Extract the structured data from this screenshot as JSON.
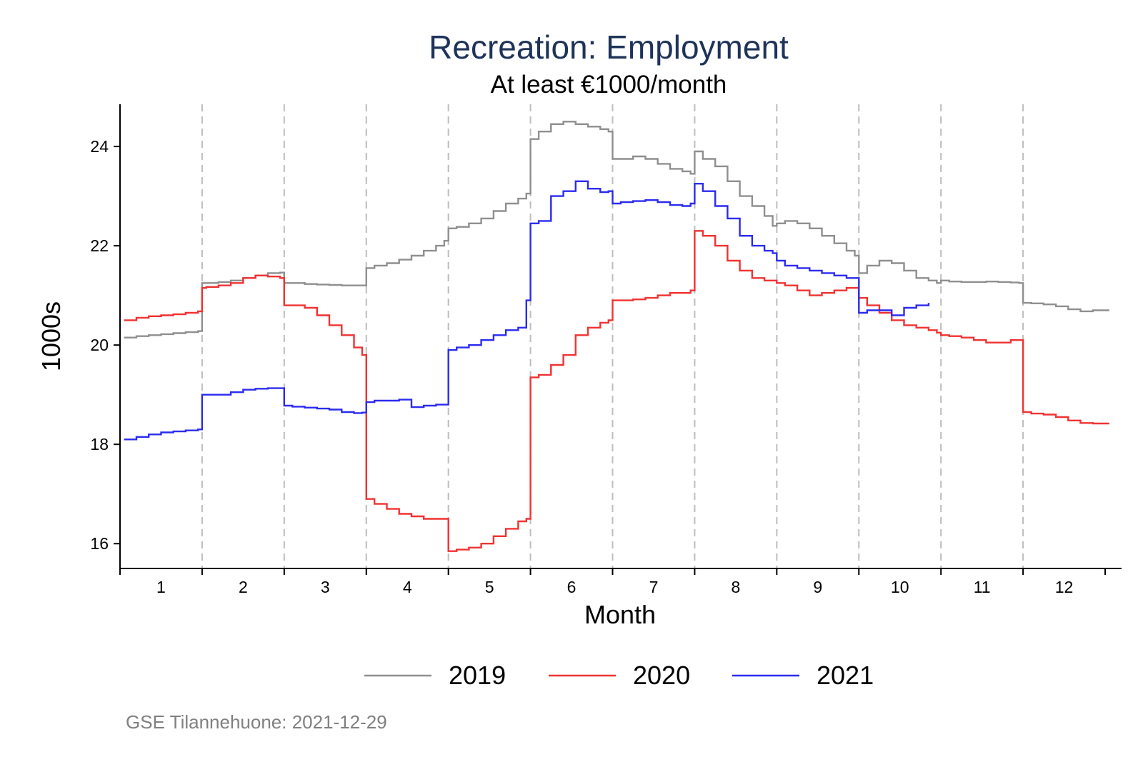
{
  "chart_data": {
    "type": "line",
    "title": "Recreation: Employment",
    "subtitle": "At least €1000/month",
    "xlabel": "Month",
    "ylabel": "1000s",
    "xlim": [
      0.5,
      12.7
    ],
    "ylim": [
      15.5,
      24.85
    ],
    "x_ticks": [
      "1",
      "2",
      "3",
      "4",
      "5",
      "6",
      "7",
      "8",
      "9",
      "10",
      "11",
      "12"
    ],
    "y_ticks": [
      16,
      18,
      20,
      22,
      24
    ],
    "month_boundaries": [
      0.5,
      1.5,
      2.5,
      3.5,
      4.5,
      5.5,
      6.5,
      7.5,
      8.5,
      9.5,
      10.5,
      11.5
    ],
    "grid": "vertical dashed month boundaries",
    "legend": "bottom",
    "colors": {
      "2019": "#8f8f8f",
      "2020": "#f03232",
      "2021": "#2b2bf0",
      "title": "#1f3359",
      "text": "#000000",
      "grid": "#bdbdbd",
      "note": "#808080"
    },
    "series": [
      {
        "name": "2019",
        "color": "#8f8f8f",
        "x": [
          0.55,
          0.7,
          0.85,
          1.0,
          1.15,
          1.3,
          1.45,
          1.5,
          1.55,
          1.7,
          1.85,
          2.0,
          2.15,
          2.3,
          2.45,
          2.5,
          2.6,
          2.75,
          2.9,
          3.05,
          3.2,
          3.35,
          3.45,
          3.5,
          3.6,
          3.75,
          3.9,
          4.05,
          4.2,
          4.35,
          4.45,
          4.5,
          4.6,
          4.75,
          4.9,
          5.05,
          5.2,
          5.35,
          5.45,
          5.5,
          5.6,
          5.75,
          5.9,
          6.05,
          6.2,
          6.35,
          6.45,
          6.5,
          6.6,
          6.75,
          6.9,
          7.05,
          7.2,
          7.35,
          7.45,
          7.5,
          7.6,
          7.75,
          7.9,
          8.05,
          8.2,
          8.35,
          8.45,
          8.5,
          8.6,
          8.75,
          8.9,
          9.05,
          9.2,
          9.35,
          9.45,
          9.5,
          9.6,
          9.75,
          9.9,
          10.05,
          10.2,
          10.35,
          10.45,
          10.5,
          10.6,
          10.75,
          10.9,
          11.05,
          11.2,
          11.35,
          11.45,
          11.5,
          11.6,
          11.75,
          11.9,
          12.05,
          12.2,
          12.35,
          12.5,
          12.55
        ],
        "values": [
          20.15,
          20.18,
          20.2,
          20.22,
          20.24,
          20.26,
          20.28,
          21.25,
          21.25,
          21.27,
          21.3,
          21.35,
          21.4,
          21.45,
          21.46,
          21.25,
          21.25,
          21.23,
          21.22,
          21.21,
          21.2,
          21.2,
          21.2,
          21.55,
          21.6,
          21.65,
          21.72,
          21.8,
          21.9,
          22.0,
          22.1,
          22.35,
          22.38,
          22.45,
          22.55,
          22.7,
          22.85,
          22.95,
          23.05,
          24.15,
          24.3,
          24.45,
          24.5,
          24.45,
          24.4,
          24.35,
          24.3,
          23.75,
          23.75,
          23.8,
          23.75,
          23.65,
          23.55,
          23.5,
          23.45,
          23.9,
          23.75,
          23.6,
          23.3,
          23.0,
          22.8,
          22.6,
          22.4,
          22.45,
          22.5,
          22.45,
          22.35,
          22.2,
          22.05,
          21.9,
          21.8,
          21.45,
          21.6,
          21.7,
          21.65,
          21.5,
          21.35,
          21.3,
          21.25,
          21.3,
          21.28,
          21.27,
          21.27,
          21.28,
          21.27,
          21.26,
          21.25,
          20.85,
          20.84,
          20.82,
          20.78,
          20.72,
          20.68,
          20.7,
          20.7,
          20.7
        ]
      },
      {
        "name": "2020",
        "color": "#f03232",
        "x": [
          0.55,
          0.7,
          0.85,
          1.0,
          1.15,
          1.3,
          1.45,
          1.5,
          1.55,
          1.7,
          1.85,
          2.0,
          2.15,
          2.3,
          2.45,
          2.5,
          2.6,
          2.75,
          2.9,
          3.05,
          3.2,
          3.35,
          3.45,
          3.5,
          3.6,
          3.75,
          3.9,
          4.05,
          4.2,
          4.35,
          4.45,
          4.5,
          4.6,
          4.75,
          4.9,
          5.05,
          5.2,
          5.35,
          5.45,
          5.5,
          5.6,
          5.75,
          5.9,
          6.05,
          6.2,
          6.35,
          6.45,
          6.5,
          6.6,
          6.75,
          6.9,
          7.05,
          7.2,
          7.35,
          7.45,
          7.5,
          7.6,
          7.75,
          7.9,
          8.05,
          8.2,
          8.35,
          8.45,
          8.5,
          8.6,
          8.75,
          8.9,
          9.05,
          9.2,
          9.35,
          9.45,
          9.5,
          9.6,
          9.75,
          9.9,
          10.05,
          10.2,
          10.35,
          10.45,
          10.5,
          10.6,
          10.75,
          10.9,
          11.05,
          11.2,
          11.35,
          11.45,
          11.5,
          11.6,
          11.75,
          11.9,
          12.05,
          12.2,
          12.35,
          12.5,
          12.55
        ],
        "values": [
          20.5,
          20.55,
          20.58,
          20.6,
          20.62,
          20.65,
          20.68,
          21.15,
          21.17,
          21.2,
          21.25,
          21.35,
          21.4,
          21.38,
          21.35,
          20.8,
          20.8,
          20.75,
          20.6,
          20.4,
          20.2,
          19.95,
          19.8,
          16.9,
          16.8,
          16.7,
          16.6,
          16.55,
          16.5,
          16.5,
          16.5,
          15.85,
          15.88,
          15.92,
          16.0,
          16.15,
          16.3,
          16.45,
          16.5,
          19.35,
          19.4,
          19.6,
          19.8,
          20.2,
          20.35,
          20.45,
          20.5,
          20.9,
          20.9,
          20.92,
          20.95,
          21.0,
          21.05,
          21.05,
          21.1,
          22.3,
          22.2,
          22.0,
          21.7,
          21.5,
          21.35,
          21.3,
          21.3,
          21.25,
          21.2,
          21.1,
          21.0,
          21.05,
          21.1,
          21.15,
          21.15,
          20.95,
          20.8,
          20.65,
          20.5,
          20.4,
          20.35,
          20.3,
          20.25,
          20.2,
          20.18,
          20.15,
          20.1,
          20.05,
          20.05,
          20.1,
          20.1,
          18.65,
          18.62,
          18.6,
          18.55,
          18.48,
          18.43,
          18.42,
          18.42,
          18.42
        ]
      },
      {
        "name": "2021",
        "color": "#2b2bf0",
        "x": [
          0.55,
          0.7,
          0.85,
          1.0,
          1.15,
          1.3,
          1.45,
          1.5,
          1.55,
          1.7,
          1.85,
          2.0,
          2.15,
          2.3,
          2.45,
          2.5,
          2.6,
          2.75,
          2.9,
          3.05,
          3.2,
          3.35,
          3.45,
          3.5,
          3.6,
          3.75,
          3.9,
          4.05,
          4.2,
          4.35,
          4.45,
          4.5,
          4.6,
          4.75,
          4.9,
          5.05,
          5.2,
          5.35,
          5.45,
          5.5,
          5.6,
          5.75,
          5.9,
          6.05,
          6.2,
          6.35,
          6.45,
          6.5,
          6.6,
          6.75,
          6.9,
          7.05,
          7.2,
          7.35,
          7.45,
          7.5,
          7.6,
          7.75,
          7.9,
          8.05,
          8.2,
          8.35,
          8.45,
          8.5,
          8.6,
          8.75,
          8.9,
          9.05,
          9.2,
          9.35,
          9.45,
          9.5,
          9.6,
          9.75,
          9.9,
          10.05,
          10.2,
          10.35
        ],
        "values": [
          18.1,
          18.15,
          18.2,
          18.24,
          18.26,
          18.28,
          18.3,
          19.0,
          19.0,
          19.0,
          19.05,
          19.1,
          19.12,
          19.13,
          19.13,
          18.78,
          18.76,
          18.74,
          18.72,
          18.7,
          18.65,
          18.63,
          18.64,
          18.85,
          18.88,
          18.88,
          18.9,
          18.75,
          18.78,
          18.8,
          18.8,
          19.9,
          19.95,
          20.0,
          20.1,
          20.2,
          20.3,
          20.35,
          20.9,
          22.45,
          22.5,
          23.0,
          23.1,
          23.3,
          23.15,
          23.08,
          23.1,
          22.85,
          22.88,
          22.9,
          22.92,
          22.88,
          22.82,
          22.8,
          22.85,
          23.25,
          23.1,
          22.8,
          22.55,
          22.2,
          22.0,
          21.9,
          21.85,
          21.7,
          21.6,
          21.55,
          21.5,
          21.45,
          21.4,
          21.35,
          21.35,
          20.65,
          20.7,
          20.7,
          20.6,
          20.75,
          20.8,
          20.85
        ]
      }
    ]
  },
  "legend_items": [
    {
      "label": "2019",
      "color": "#8f8f8f"
    },
    {
      "label": "2020",
      "color": "#f03232"
    },
    {
      "label": "2021",
      "color": "#2b2bf0"
    }
  ],
  "note": "GSE Tilannehuone: 2021-12-29"
}
